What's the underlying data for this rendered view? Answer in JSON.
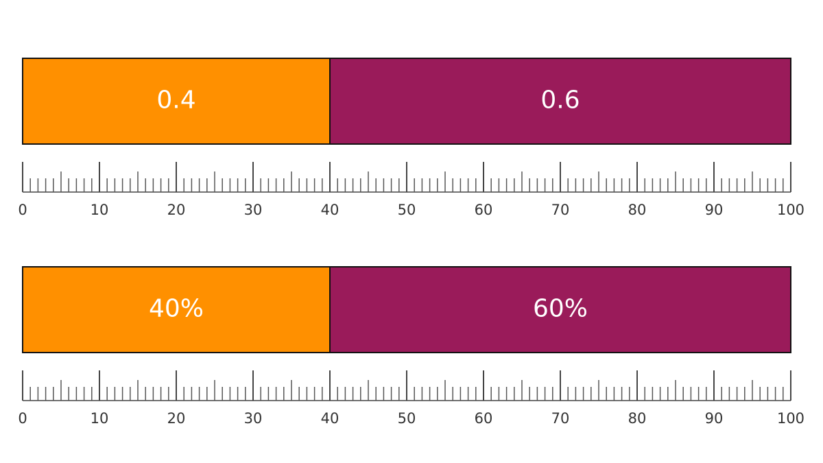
{
  "chart_data": [
    {
      "type": "stacked-bar",
      "series": [
        {
          "color": "#ff9000",
          "values": [
            40
          ],
          "value_labels": [
            "0.4"
          ]
        },
        {
          "color": "#9a1b5a",
          "values": [
            60
          ],
          "value_labels": [
            "0.6"
          ]
        }
      ],
      "xlim": [
        0,
        100
      ],
      "xticks": [
        0,
        10,
        20,
        30,
        40,
        50,
        60,
        70,
        80,
        90,
        100
      ],
      "xticks_minor": [
        1,
        2,
        3,
        4,
        5,
        6,
        7,
        8,
        9,
        11,
        12,
        13,
        14,
        15,
        16,
        17,
        18,
        19,
        21,
        22,
        23,
        24,
        25,
        26,
        27,
        28,
        29,
        31,
        32,
        33,
        34,
        35,
        36,
        37,
        38,
        39,
        41,
        42,
        43,
        44,
        45,
        46,
        47,
        48,
        49,
        51,
        52,
        53,
        54,
        55,
        56,
        57,
        58,
        59,
        61,
        62,
        63,
        64,
        65,
        66,
        67,
        68,
        69,
        71,
        72,
        73,
        74,
        75,
        76,
        77,
        78,
        79,
        81,
        82,
        83,
        84,
        85,
        86,
        87,
        88,
        89,
        91,
        92,
        93,
        94,
        95,
        96,
        97,
        98,
        99
      ]
    },
    {
      "type": "stacked-bar",
      "series": [
        {
          "color": "#ff9000",
          "values": [
            40
          ],
          "value_labels": [
            "40%"
          ]
        },
        {
          "color": "#9a1b5a",
          "values": [
            60
          ],
          "value_labels": [
            "60%"
          ]
        }
      ],
      "xlim": [
        0,
        100
      ],
      "xticks": [
        0,
        10,
        20,
        30,
        40,
        50,
        60,
        70,
        80,
        90,
        100
      ],
      "xticks_minor": [
        1,
        2,
        3,
        4,
        5,
        6,
        7,
        8,
        9,
        11,
        12,
        13,
        14,
        15,
        16,
        17,
        18,
        19,
        21,
        22,
        23,
        24,
        25,
        26,
        27,
        28,
        29,
        31,
        32,
        33,
        34,
        35,
        36,
        37,
        38,
        39,
        41,
        42,
        43,
        44,
        45,
        46,
        47,
        48,
        49,
        51,
        52,
        53,
        54,
        55,
        56,
        57,
        58,
        59,
        61,
        62,
        63,
        64,
        65,
        66,
        67,
        68,
        69,
        71,
        72,
        73,
        74,
        75,
        76,
        77,
        78,
        79,
        81,
        82,
        83,
        84,
        85,
        86,
        87,
        88,
        89,
        91,
        92,
        93,
        94,
        95,
        96,
        97,
        98,
        99
      ]
    }
  ]
}
